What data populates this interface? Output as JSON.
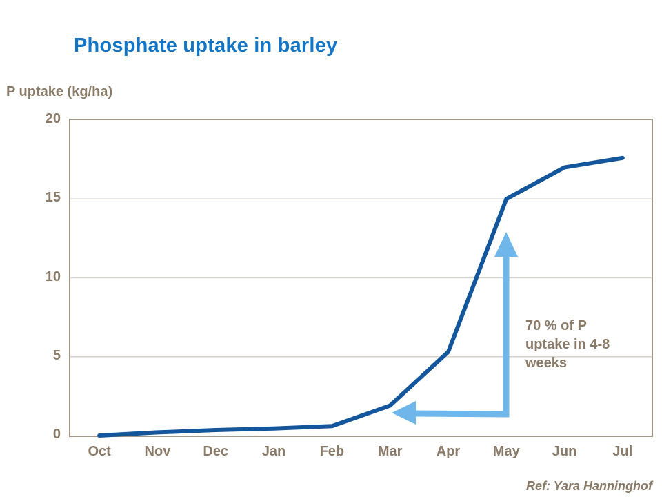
{
  "header": {
    "title": "Phosphate uptake in barley"
  },
  "chart_data": {
    "type": "line",
    "title": "Phosphate uptake in barley",
    "xlabel": "",
    "ylabel": "P uptake (kg/ha)",
    "categories": [
      "Oct",
      "Nov",
      "Dec",
      "Jan",
      "Feb",
      "Mar",
      "Apr",
      "May",
      "Jun",
      "Jul"
    ],
    "values": [
      0,
      0.2,
      0.35,
      0.45,
      0.6,
      1.9,
      5.3,
      15,
      17,
      17.6
    ],
    "ylim": [
      0,
      20
    ],
    "yticks": [
      0,
      5,
      10,
      15,
      20
    ],
    "grid": "horizontal gridlines at 5, 10, 15",
    "legend": "none",
    "series_color": "#14569B",
    "annotation": "70 % of P uptake in 4-8 weeks",
    "annotation_arrow": "light-blue L-shaped arrow pointing up at May and left toward Mar"
  },
  "annotation": {
    "text": "70 % of P\nuptake in 4-8\nweeks"
  },
  "footer": {
    "reference": "Ref: Yara Hanninghof"
  },
  "colors": {
    "title_blue": "#1176C8",
    "axis_text": "#8A7A68",
    "line_blue": "#14569B",
    "arrow_blue": "#6FB7EB",
    "gridline": "#D6D1CB",
    "plot_border": "#A49787",
    "background": "#FFFFFF"
  }
}
